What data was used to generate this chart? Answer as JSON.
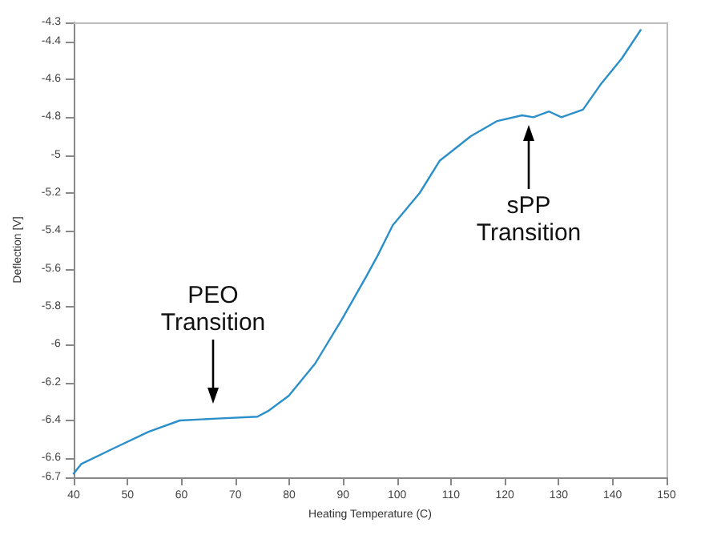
{
  "chart_data": {
    "type": "line",
    "xlabel": "Heating Temperature (C)",
    "ylabel": "Deflection [V]",
    "x": [
      40,
      41.4,
      47.2,
      53.9,
      59.7,
      66.6,
      74.1,
      76.1,
      79.9,
      84.8,
      89.7,
      94.3,
      96.4,
      99.2,
      104.2,
      107.9,
      108.8,
      113.7,
      118.6,
      123.2,
      125.3,
      128.2,
      130.5,
      134.5,
      137.7,
      141.7,
      145.2
    ],
    "series": [
      {
        "color": "#2b8fc9",
        "values": [
          -6.68,
          -6.63,
          -6.55,
          -6.46,
          -6.4,
          -6.39,
          -6.38,
          -6.35,
          -6.27,
          -6.1,
          -5.87,
          -5.64,
          -5.53,
          -5.37,
          -5.2,
          -5.03,
          -5.01,
          -4.9,
          -4.82,
          -4.79,
          -4.8,
          -4.77,
          -4.8,
          -4.76,
          -4.63,
          -4.49,
          -4.34
        ]
      }
    ],
    "xlim": [
      40,
      150
    ],
    "xticks": [
      40,
      50,
      60,
      70,
      80,
      90,
      100,
      110,
      120,
      130,
      140,
      150
    ],
    "ylim": [
      -6.7,
      -4.3
    ],
    "yticks": [
      -6.7,
      -6.6,
      -6.4,
      -6.2,
      -6,
      -5.8,
      -5.6,
      -5.4,
      -5.2,
      -5,
      -4.8,
      -4.6,
      -4.4,
      -4.3
    ],
    "annotations": [
      "PEO\nTransition",
      "sPP\nTransition"
    ],
    "grid": false,
    "marker": "none",
    "line_style": "solid"
  }
}
